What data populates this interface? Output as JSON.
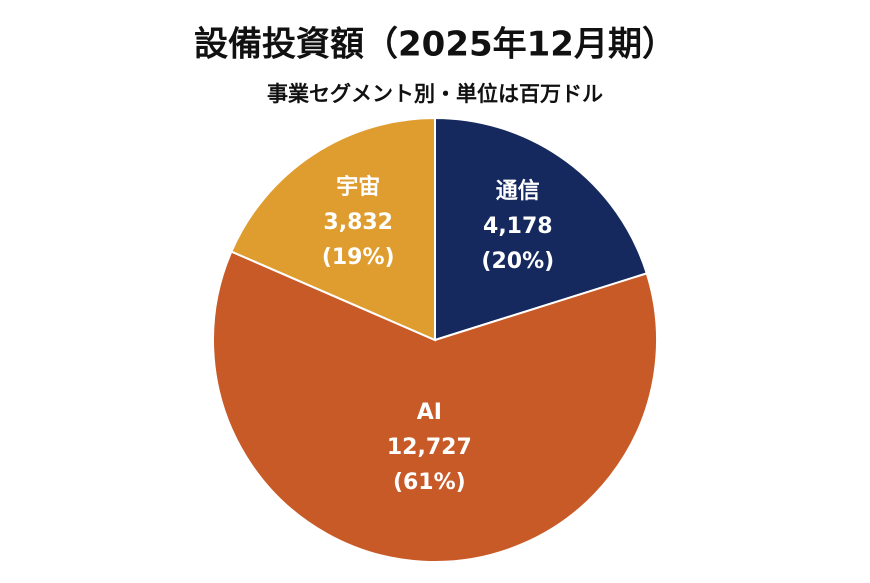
{
  "chart_data": {
    "type": "pie",
    "title": "設備投資額（2025年12月期）",
    "subtitle": "事業セグメント別・単位は百万ドル",
    "categories": [
      "通信",
      "AI",
      "宇宙"
    ],
    "values": [
      4178,
      12727,
      3832
    ],
    "value_labels": [
      "4,178",
      "12,727",
      "3,832"
    ],
    "share_labels": [
      "(20%)",
      "(61%)",
      "(19%)"
    ],
    "colors": [
      "#15295e",
      "#c85a27",
      "#e09d2f"
    ]
  }
}
